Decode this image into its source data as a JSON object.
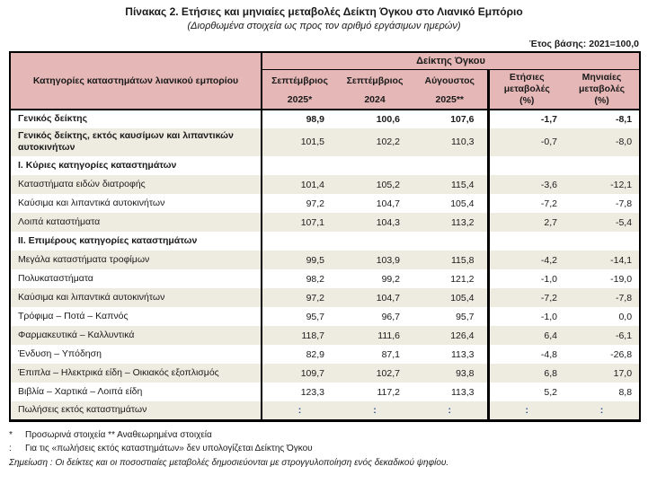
{
  "title": "Πίνακας 2. Ετήσιες και μηνιαίες μεταβολές Δείκτη Όγκου στο Λιανικό Εμπόριο",
  "subtitle": "(Διορθωμένα στοιχεία ως προς τον αριθμό εργάσιμων ημερών)",
  "base_year_note": "Έτος βάσης: 2021=100,0",
  "colors": {
    "header_bg": "#E5B8B7",
    "row_alt_bg": "#EEECE1",
    "colon_text": "#1F497D",
    "border": "#000000"
  },
  "table": {
    "categories_header": "Κατηγορίες καταστημάτων λιανικού εμπορίου",
    "group_header": "Δείκτης Όγκου",
    "columns": [
      {
        "line1": "Σεπτέμβριος",
        "line2": "2025*"
      },
      {
        "line1": "Σεπτέμβριος",
        "line2": "2024"
      },
      {
        "line1": "Αύγουστος",
        "line2": "2025**"
      },
      {
        "line1": "Ετήσιες μεταβολές",
        "line2": "(%)"
      },
      {
        "line1": "Μηνιαίες μεταβολές",
        "line2": "(%)"
      }
    ],
    "rows": [
      {
        "label": "Γενικός δείκτης",
        "bold": true,
        "values_bold": true,
        "values": [
          "98,9",
          "100,6",
          "107,6",
          "-1,7",
          "-8,1"
        ]
      },
      {
        "label": "Γενικός δείκτης, εκτός καυσίμων και λιπαντικών αυτοκινήτων",
        "bold": true,
        "values": [
          "101,5",
          "102,2",
          "110,3",
          "-0,7",
          "-8,0"
        ]
      },
      {
        "label": "Ι. Κύριες κατηγορίες καταστημάτων",
        "section": true,
        "values": [
          "",
          "",
          "",
          "",
          ""
        ]
      },
      {
        "label": "Καταστήματα ειδών διατροφής",
        "values": [
          "101,4",
          "105,2",
          "115,4",
          "-3,6",
          "-12,1"
        ]
      },
      {
        "label": "Καύσιμα και λιπαντικά αυτοκινήτων",
        "values": [
          "97,2",
          "104,7",
          "105,4",
          "-7,2",
          "-7,8"
        ]
      },
      {
        "label": "Λοιπά καταστήματα",
        "values": [
          "107,1",
          "104,3",
          "113,2",
          "2,7",
          "-5,4"
        ]
      },
      {
        "label": "ΙΙ. Επιμέρους κατηγορίες καταστημάτων",
        "section": true,
        "values": [
          "",
          "",
          "",
          "",
          ""
        ]
      },
      {
        "label": "Μεγάλα καταστήματα τροφίμων",
        "values": [
          "99,5",
          "103,9",
          "115,8",
          "-4,2",
          "-14,1"
        ]
      },
      {
        "label": "Πολυκαταστήματα",
        "values": [
          "98,2",
          "99,2",
          "121,2",
          "-1,0",
          "-19,0"
        ]
      },
      {
        "label": "Καύσιμα και λιπαντικά αυτοκινήτων",
        "values": [
          "97,2",
          "104,7",
          "105,4",
          "-7,2",
          "-7,8"
        ]
      },
      {
        "label": "Τρόφιμα – Ποτά – Καπνός",
        "values": [
          "95,7",
          "96,7",
          "95,7",
          "-1,0",
          "0,0"
        ]
      },
      {
        "label": "Φαρμακευτικά – Καλλυντικά",
        "values": [
          "118,7",
          "111,6",
          "126,4",
          "6,4",
          "-6,1"
        ]
      },
      {
        "label": "Ένδυση – Υπόδηση",
        "values": [
          "82,9",
          "87,1",
          "113,3",
          "-4,8",
          "-26,8"
        ]
      },
      {
        "label": "Έπιπλα – Ηλεκτρικά είδη – Οικιακός εξοπλισμός",
        "values": [
          "109,7",
          "102,7",
          "93,8",
          "6,8",
          "17,0"
        ]
      },
      {
        "label": "Βιβλία – Χαρτικά – Λοιπά είδη",
        "values": [
          "123,3",
          "117,2",
          "113,3",
          "5,2",
          "8,8"
        ]
      },
      {
        "label": "Πωλήσεις εκτός καταστημάτων",
        "values": [
          ":",
          ":",
          ":",
          ":",
          ":"
        ]
      }
    ]
  },
  "footnotes": [
    {
      "marker": "*",
      "text": "Προσωρινά στοιχεία  **  Αναθεωρημένα στοιχεία",
      "italic": false
    },
    {
      "marker": ":",
      "text": "Για τις «πωλήσεις εκτός καταστημάτων» δεν υπολογίζεται Δείκτης Όγκου",
      "italic": false
    },
    {
      "marker": "",
      "text": "Σημείωση : Οι δείκτες και οι ποσοστιαίες μεταβολές δημοσιεύονται με στρογγυλοποίηση ενός δεκαδικού ψηφίου.",
      "italic": true
    }
  ]
}
